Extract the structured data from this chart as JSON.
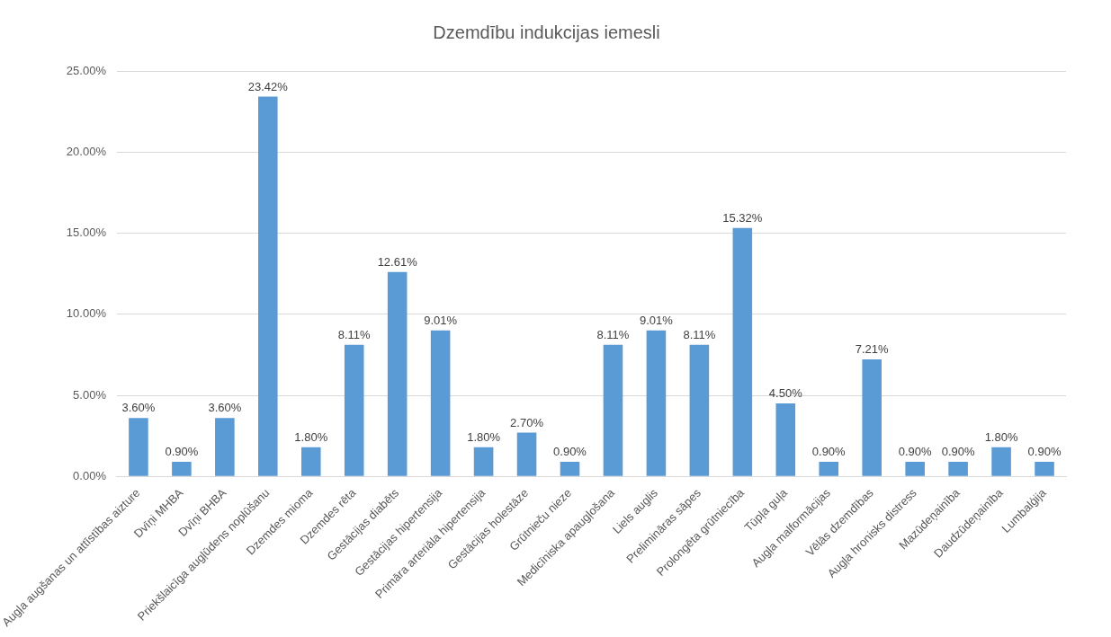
{
  "chart_data": {
    "type": "bar",
    "title": "Dzemdību indukcijas iemesli",
    "categories": [
      "Augļa augšanas un attīstības aizture",
      "Dvīņi MHBA",
      "Dvīņi BHBA",
      "Priekšlaicīga augļūdens noplūšanu",
      "Dzemdes mioma",
      "Dzemdes rēta",
      "Gestācijas diabēts",
      "Gestācijas hipertensija",
      "Primāra arteriāla hipertensija",
      "Gestācijas holestāze",
      "Grūtnieču nieze",
      "Medicīniska apaugļošana",
      "Liels auglis",
      "Prelimināras sāpes",
      "Prolongēta grūtniecība",
      "Tūpļa guļa",
      "Augļa malformācijas",
      "Vēlās dzemdības",
      "Augļa hronisks distress",
      "Mazūdeņainība",
      "Daudzūdeņainība",
      "Lumbalģija"
    ],
    "values": [
      3.6,
      0.9,
      3.6,
      23.42,
      1.8,
      8.11,
      12.61,
      9.01,
      1.8,
      2.7,
      0.9,
      8.11,
      9.01,
      8.11,
      15.32,
      4.5,
      0.9,
      7.21,
      0.9,
      0.9,
      1.8,
      0.9
    ],
    "value_labels": [
      "3.60%",
      "0.90%",
      "3.60%",
      "23.42%",
      "1.80%",
      "8.11%",
      "12.61%",
      "9.01%",
      "1.80%",
      "2.70%",
      "0.90%",
      "8.11%",
      "9.01%",
      "8.11%",
      "15.32%",
      "4.50%",
      "0.90%",
      "7.21%",
      "0.90%",
      "0.90%",
      "1.80%",
      "0.90%"
    ],
    "color": "#5b9bd5",
    "ylim": [
      0,
      25
    ],
    "yticks": [
      {
        "value": 0,
        "label": "0.00%"
      },
      {
        "value": 5,
        "label": "5.00%"
      },
      {
        "value": 10,
        "label": "10.00%"
      },
      {
        "value": 15,
        "label": "15.00%"
      },
      {
        "value": 20,
        "label": "20.00%"
      },
      {
        "value": 25,
        "label": "25.00%"
      }
    ],
    "grid": "y",
    "legend": false
  }
}
